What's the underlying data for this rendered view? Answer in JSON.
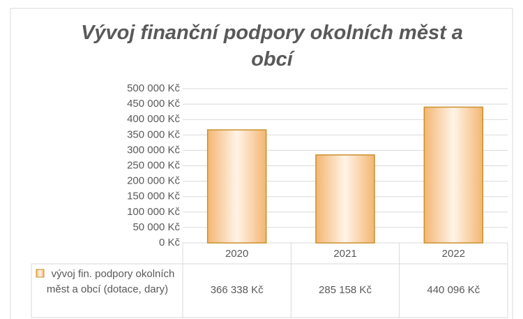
{
  "chart_data": {
    "type": "bar",
    "title": "Vývoj finanční podpory okolních měst a obcí",
    "categories": [
      "2020",
      "2021",
      "2022"
    ],
    "series": [
      {
        "name": "vývoj fin. podpory okolních měst a obcí (dotace, dary)",
        "color": "#f5b97a",
        "values": [
          366338,
          285158,
          440096
        ],
        "value_labels": [
          "366 338 Kč",
          "285 158 Kč",
          "440 096 Kč"
        ]
      }
    ],
    "ylim": [
      0,
      500000
    ],
    "yticks": [
      {
        "value": 0,
        "label": "0 Kč"
      },
      {
        "value": 50000,
        "label": "50 000 Kč"
      },
      {
        "value": 100000,
        "label": "100 000 Kč"
      },
      {
        "value": 150000,
        "label": "150 000 Kč"
      },
      {
        "value": 200000,
        "label": "200 000 Kč"
      },
      {
        "value": 250000,
        "label": "250 000 Kč"
      },
      {
        "value": 300000,
        "label": "300 000 Kč"
      },
      {
        "value": 350000,
        "label": "350 000 Kč"
      },
      {
        "value": 400000,
        "label": "400 000 Kč"
      },
      {
        "value": 450000,
        "label": "450 000 Kč"
      },
      {
        "value": 500000,
        "label": "500 000 Kč"
      }
    ],
    "grid": true
  }
}
